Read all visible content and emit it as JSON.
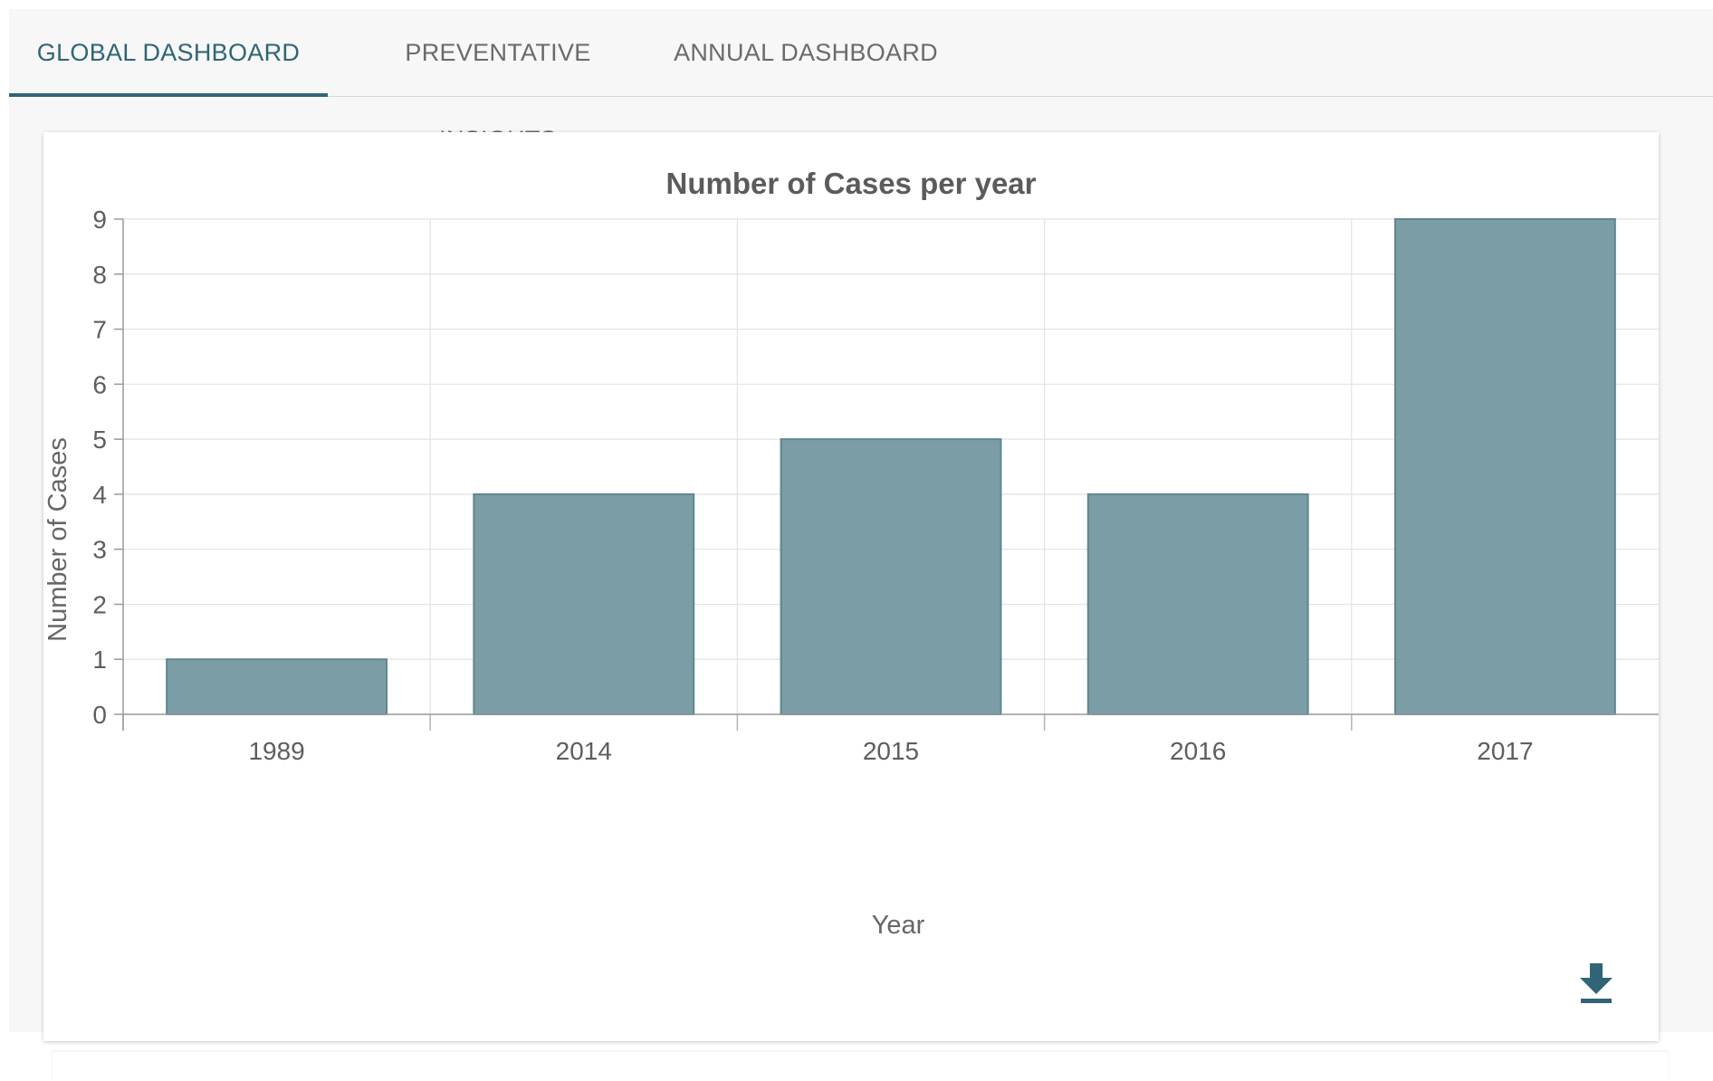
{
  "tabs": [
    {
      "label": "GLOBAL DASHBOARD",
      "active": true
    },
    {
      "label": "PREVENTATIVE INSIGHTS",
      "active": false
    },
    {
      "label": "ANNUAL DASHBOARD",
      "active": false
    }
  ],
  "colors": {
    "accent": "#2f6576",
    "bar_fill": "#7b9da6",
    "bar_stroke": "#5f8690"
  },
  "icons": {
    "download": "download-icon"
  },
  "chart_data": {
    "type": "bar",
    "title": "Number of Cases per year",
    "xlabel": "Year",
    "ylabel": "Number of Cases",
    "categories": [
      "1989",
      "2014",
      "2015",
      "2016",
      "2017"
    ],
    "values": [
      1,
      4,
      5,
      4,
      9
    ],
    "ylim": [
      0,
      9
    ],
    "yticks": [
      0,
      1,
      2,
      3,
      4,
      5,
      6,
      7,
      8,
      9
    ],
    "grid": true,
    "legend": "none"
  }
}
